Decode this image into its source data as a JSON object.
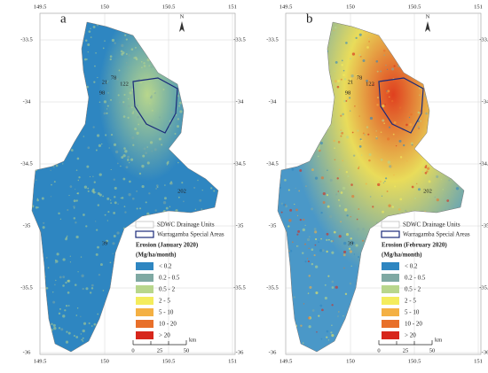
{
  "panels": [
    {
      "label": "a",
      "lon_ticks": [
        "149.5",
        "150",
        "150.5",
        "151"
      ],
      "lat_ticks": [
        "-33.5",
        "-34",
        "-34.5",
        "-35",
        "-35.5",
        "-36"
      ],
      "north": "N",
      "unit_labels": [
        "21",
        "122",
        "78",
        "98",
        "202",
        "39"
      ],
      "legend": {
        "units": "SDWC Drainage Units",
        "special": "Warragamba Special Areas",
        "title": "Erosion (January 2020)",
        "subtitle": "(Mg/ha/month)",
        "classes": [
          {
            "label": "< 0.2",
            "color": "#2e86c1"
          },
          {
            "label": "0.2 - 0.5",
            "color": "#7fa9a3"
          },
          {
            "label": "0.5 - 2",
            "color": "#b8d68c"
          },
          {
            "label": "2 - 5",
            "color": "#f4ec5c"
          },
          {
            "label": "5 - 10",
            "color": "#f4b043"
          },
          {
            "label": "10 - 20",
            "color": "#e8702a"
          },
          {
            "label": "> 20",
            "color": "#d7261b"
          }
        ]
      },
      "scale": {
        "ticks": [
          "0",
          "25",
          "50"
        ],
        "unit": "km"
      },
      "colors": {
        "base": "#2e86c1",
        "mid": "#2e86c1",
        "hot": "#b8d68c"
      }
    },
    {
      "label": "b",
      "lon_ticks": [
        "149.5",
        "150",
        "150.5",
        "151"
      ],
      "lat_ticks": [
        "-33.5",
        "-34",
        "-34.5",
        "-35",
        "-35.5",
        "-36"
      ],
      "north": "N",
      "unit_labels": [
        "21",
        "122",
        "78",
        "98",
        "202",
        "39"
      ],
      "legend": {
        "units": "SDWC Drainage Units",
        "special": "Warragamba Special Areas",
        "title": "Erosion (February 2020)",
        "subtitle": "(Mg/ha/month)",
        "classes": [
          {
            "label": "< 0.2",
            "color": "#2e86c1"
          },
          {
            "label": "0.2 - 0.5",
            "color": "#7fa9a3"
          },
          {
            "label": "0.5 - 2",
            "color": "#b8d68c"
          },
          {
            "label": "2 - 5",
            "color": "#f4ec5c"
          },
          {
            "label": "5 - 10",
            "color": "#f4b043"
          },
          {
            "label": "10 - 20",
            "color": "#e8702a"
          },
          {
            "label": "> 20",
            "color": "#d7261b"
          }
        ]
      },
      "scale": {
        "ticks": [
          "0",
          "25",
          "50"
        ],
        "unit": "km"
      },
      "colors": {
        "base": "#4a98c8",
        "mid": "#e9dc5a",
        "hot": "#e0401f"
      }
    }
  ]
}
